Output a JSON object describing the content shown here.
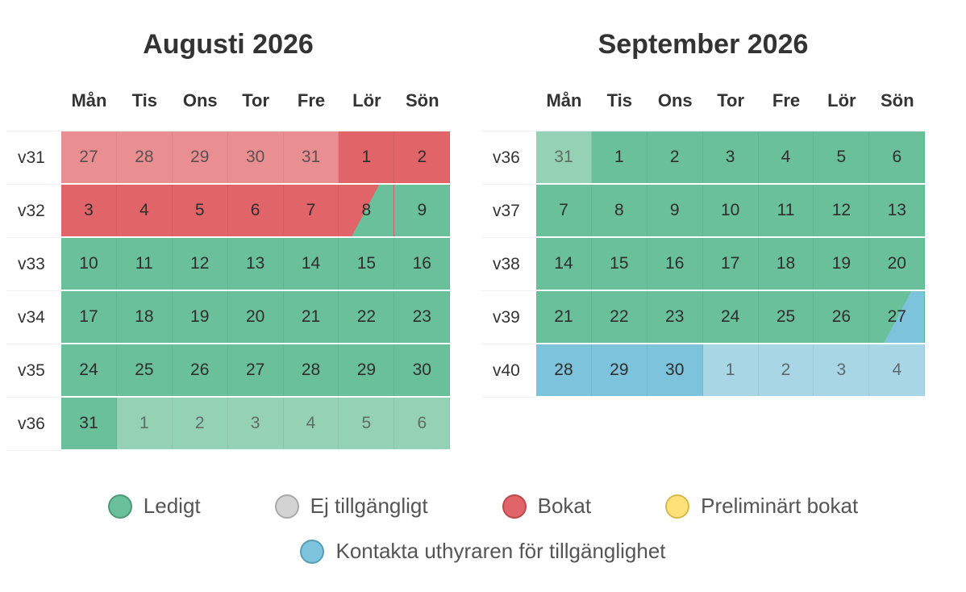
{
  "weekdays": [
    "Mån",
    "Tis",
    "Ons",
    "Tor",
    "Fre",
    "Lör",
    "Sön"
  ],
  "calendars": [
    {
      "title": "Augusti 2026",
      "weeks": [
        {
          "label": "v31",
          "days": [
            {
              "n": "27",
              "s": "booked-out"
            },
            {
              "n": "28",
              "s": "booked-out"
            },
            {
              "n": "29",
              "s": "booked-out"
            },
            {
              "n": "30",
              "s": "booked-out"
            },
            {
              "n": "31",
              "s": "booked-out"
            },
            {
              "n": "1",
              "s": "booked"
            },
            {
              "n": "2",
              "s": "booked"
            }
          ]
        },
        {
          "label": "v32",
          "days": [
            {
              "n": "3",
              "s": "booked"
            },
            {
              "n": "4",
              "s": "booked"
            },
            {
              "n": "5",
              "s": "booked"
            },
            {
              "n": "6",
              "s": "booked"
            },
            {
              "n": "7",
              "s": "booked"
            },
            {
              "n": "8",
              "s": "split-booked-free"
            },
            {
              "n": "9",
              "s": "free"
            }
          ]
        },
        {
          "label": "v33",
          "days": [
            {
              "n": "10",
              "s": "free"
            },
            {
              "n": "11",
              "s": "free"
            },
            {
              "n": "12",
              "s": "free"
            },
            {
              "n": "13",
              "s": "free"
            },
            {
              "n": "14",
              "s": "free"
            },
            {
              "n": "15",
              "s": "free"
            },
            {
              "n": "16",
              "s": "free"
            }
          ]
        },
        {
          "label": "v34",
          "days": [
            {
              "n": "17",
              "s": "free"
            },
            {
              "n": "18",
              "s": "free"
            },
            {
              "n": "19",
              "s": "free"
            },
            {
              "n": "20",
              "s": "free"
            },
            {
              "n": "21",
              "s": "free"
            },
            {
              "n": "22",
              "s": "free"
            },
            {
              "n": "23",
              "s": "free"
            }
          ]
        },
        {
          "label": "v35",
          "days": [
            {
              "n": "24",
              "s": "free"
            },
            {
              "n": "25",
              "s": "free"
            },
            {
              "n": "26",
              "s": "free"
            },
            {
              "n": "27",
              "s": "free"
            },
            {
              "n": "28",
              "s": "free"
            },
            {
              "n": "29",
              "s": "free"
            },
            {
              "n": "30",
              "s": "free"
            }
          ]
        },
        {
          "label": "v36",
          "days": [
            {
              "n": "31",
              "s": "free"
            },
            {
              "n": "1",
              "s": "free-out"
            },
            {
              "n": "2",
              "s": "free-out"
            },
            {
              "n": "3",
              "s": "free-out"
            },
            {
              "n": "4",
              "s": "free-out"
            },
            {
              "n": "5",
              "s": "free-out"
            },
            {
              "n": "6",
              "s": "free-out"
            }
          ]
        }
      ]
    },
    {
      "title": "September 2026",
      "weeks": [
        {
          "label": "v36",
          "days": [
            {
              "n": "31",
              "s": "free-out"
            },
            {
              "n": "1",
              "s": "free"
            },
            {
              "n": "2",
              "s": "free"
            },
            {
              "n": "3",
              "s": "free"
            },
            {
              "n": "4",
              "s": "free"
            },
            {
              "n": "5",
              "s": "free"
            },
            {
              "n": "6",
              "s": "free"
            }
          ]
        },
        {
          "label": "v37",
          "days": [
            {
              "n": "7",
              "s": "free"
            },
            {
              "n": "8",
              "s": "free"
            },
            {
              "n": "9",
              "s": "free"
            },
            {
              "n": "10",
              "s": "free"
            },
            {
              "n": "11",
              "s": "free"
            },
            {
              "n": "12",
              "s": "free"
            },
            {
              "n": "13",
              "s": "free"
            }
          ]
        },
        {
          "label": "v38",
          "days": [
            {
              "n": "14",
              "s": "free"
            },
            {
              "n": "15",
              "s": "free"
            },
            {
              "n": "16",
              "s": "free"
            },
            {
              "n": "17",
              "s": "free"
            },
            {
              "n": "18",
              "s": "free"
            },
            {
              "n": "19",
              "s": "free"
            },
            {
              "n": "20",
              "s": "free"
            }
          ]
        },
        {
          "label": "v39",
          "days": [
            {
              "n": "21",
              "s": "free"
            },
            {
              "n": "22",
              "s": "free"
            },
            {
              "n": "23",
              "s": "free"
            },
            {
              "n": "24",
              "s": "free"
            },
            {
              "n": "25",
              "s": "free"
            },
            {
              "n": "26",
              "s": "free"
            },
            {
              "n": "27",
              "s": "split-free-contact"
            }
          ]
        },
        {
          "label": "v40",
          "days": [
            {
              "n": "28",
              "s": "contact"
            },
            {
              "n": "29",
              "s": "contact"
            },
            {
              "n": "30",
              "s": "contact"
            },
            {
              "n": "1",
              "s": "contact-out"
            },
            {
              "n": "2",
              "s": "contact-out"
            },
            {
              "n": "3",
              "s": "contact-out"
            },
            {
              "n": "4",
              "s": "contact-out"
            }
          ]
        }
      ]
    }
  ],
  "legend": {
    "free": {
      "label": "Ledigt",
      "color": "#6ac09a"
    },
    "not_available": {
      "label": "Ej tillgängligt",
      "color": "#d3d3d3"
    },
    "booked": {
      "label": "Bokat",
      "color": "#e06468"
    },
    "preliminary": {
      "label": "Preliminärt bokat",
      "color": "#ffe17a"
    },
    "contact": {
      "label": "Kontakta uthyraren för tillgänglighet",
      "color": "#7cc3db"
    }
  }
}
